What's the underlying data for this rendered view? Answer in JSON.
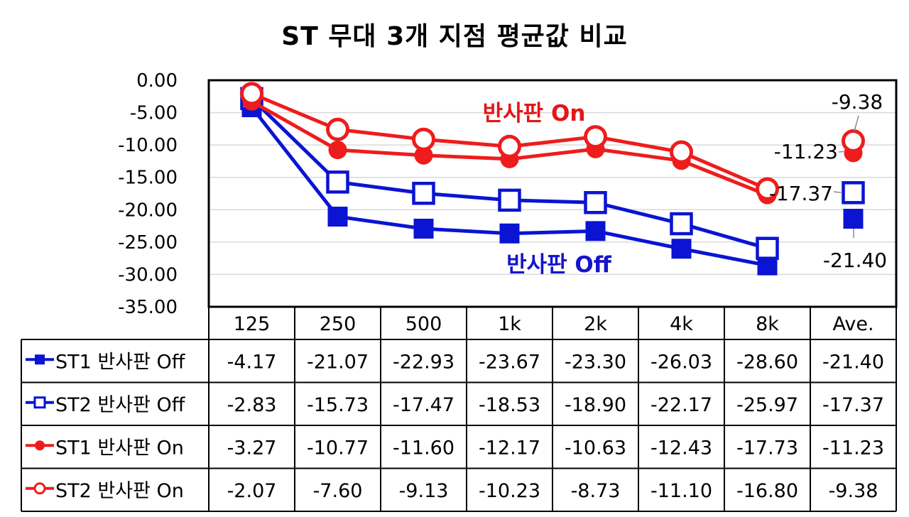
{
  "chart_data": {
    "type": "line",
    "title": "ST 무대 3개 지점 평균값 비교",
    "categories": [
      "125",
      "250",
      "500",
      "1k",
      "2k",
      "4k",
      "8k",
      "Ave."
    ],
    "ylim": [
      -35,
      0
    ],
    "yticks": [
      "0.00",
      "-5.00",
      "-10.00",
      "-15.00",
      "-20.00",
      "-25.00",
      "-30.00",
      "-35.00"
    ],
    "grid": true,
    "legend": "data-table-left",
    "series": [
      {
        "name": "ST1 반사판 Off",
        "color": "#0a14d2",
        "marker": "square-filled",
        "values": [
          -4.17,
          -21.07,
          -22.93,
          -23.67,
          -23.3,
          -26.03,
          -28.6,
          -21.4
        ],
        "labels": [
          "-4.17",
          "-21.07",
          "-22.93",
          "-23.67",
          "-23.30",
          "-26.03",
          "-28.60",
          "-21.40"
        ]
      },
      {
        "name": "ST2 반사판 Off",
        "color": "#0a14d2",
        "marker": "square-open",
        "values": [
          -2.83,
          -15.73,
          -17.47,
          -18.53,
          -18.9,
          -22.17,
          -25.97,
          -17.37
        ],
        "labels": [
          "-2.83",
          "-15.73",
          "-17.47",
          "-18.53",
          "-18.90",
          "-22.17",
          "-25.97",
          "-17.37"
        ]
      },
      {
        "name": "ST1 반사판 On",
        "color": "#ee1c1c",
        "marker": "circle-filled",
        "values": [
          -3.27,
          -10.77,
          -11.6,
          -12.17,
          -10.63,
          -12.43,
          -17.73,
          -11.23
        ],
        "labels": [
          "-3.27",
          "-10.77",
          "-11.60",
          "-12.17",
          "-10.63",
          "-12.43",
          "-17.73",
          "-11.23"
        ]
      },
      {
        "name": "ST2 반사판 On",
        "color": "#ee1c1c",
        "marker": "circle-open",
        "values": [
          -2.07,
          -7.6,
          -9.13,
          -10.23,
          -8.73,
          -11.1,
          -16.8,
          -9.38
        ],
        "labels": [
          "-2.07",
          "-7.60",
          "-9.13",
          "-10.23",
          "-8.73",
          "-11.10",
          "-16.80",
          "-9.38"
        ]
      }
    ],
    "annotations": [
      {
        "text": "반사판 On",
        "kind": "on"
      },
      {
        "text": "반사판 Off",
        "kind": "off"
      },
      {
        "text": "-9.38",
        "kind": "ave"
      },
      {
        "text": "-11.23",
        "kind": "ave"
      },
      {
        "text": "-17.37",
        "kind": "ave"
      },
      {
        "text": "-21.40",
        "kind": "ave"
      }
    ]
  }
}
